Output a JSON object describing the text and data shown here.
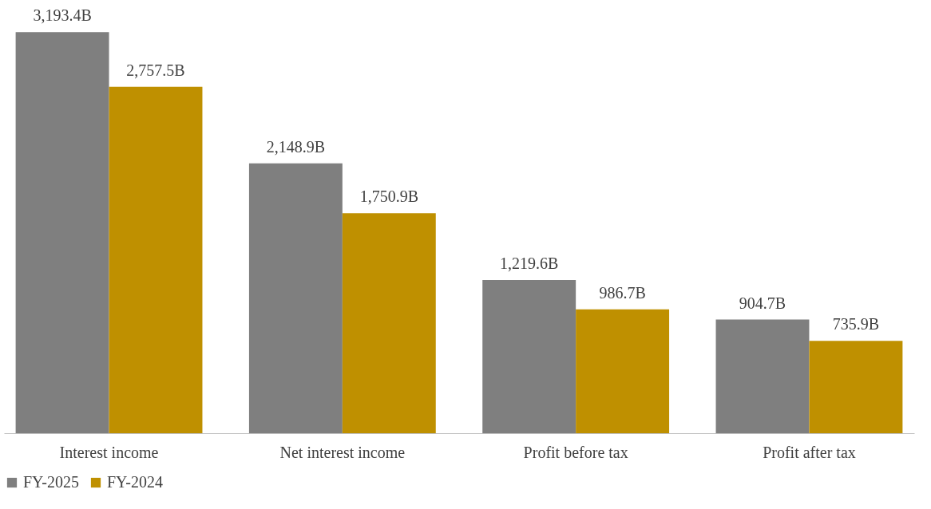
{
  "chart_data": {
    "type": "bar",
    "categories": [
      "Interest income",
      "Net interest income",
      "Profit before tax",
      "Profit after tax"
    ],
    "series": [
      {
        "name": "FY-2025",
        "color": "#7f7f7f",
        "values": [
          3193.4,
          2148.9,
          1219.6,
          904.7
        ],
        "value_labels": [
          "3,193.4B",
          "2,148.9B",
          "1,219.6B",
          "904.7B"
        ]
      },
      {
        "name": "FY-2024",
        "color": "#bf9000",
        "values": [
          2757.5,
          1750.9,
          986.7,
          735.9
        ],
        "value_labels": [
          "2,757.5B",
          "1,750.9B",
          "986.7B",
          "735.9B"
        ]
      }
    ],
    "legend": "bottom",
    "grid": false
  }
}
